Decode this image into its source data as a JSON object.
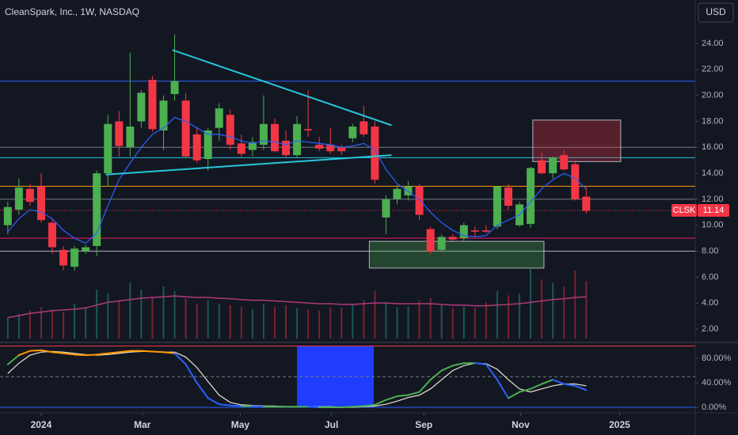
{
  "chart_data": {
    "type": "candlestick",
    "title": "CleanSpark, Inc., 1W, NASDAQ",
    "currency": "USD",
    "symbol": "CLSK",
    "last": 11.14,
    "last_color": "#f23645",
    "up_color": "#4caf50",
    "down_color": "#f23645",
    "x": [
      -3,
      -2,
      -1,
      0,
      1,
      2,
      3,
      4,
      5,
      6,
      7,
      8,
      9,
      10,
      11,
      12,
      13,
      14,
      15,
      16,
      17,
      18,
      19,
      20,
      21,
      22,
      23,
      24,
      25,
      26,
      27,
      28,
      29,
      30,
      31,
      32,
      33,
      34,
      35,
      36,
      37,
      38,
      39,
      40,
      41,
      42,
      43,
      44,
      45,
      46,
      47,
      48,
      49
    ],
    "open": [
      10,
      11.2,
      12.8,
      13,
      10.2,
      8.1,
      6.8,
      8,
      8.4,
      14,
      18,
      16,
      18,
      21.2,
      17.3,
      20.1,
      19.6,
      17,
      15.1,
      17.5,
      18.5,
      16.3,
      15.8,
      16.2,
      17.8,
      16.5,
      15.4,
      17.4,
      16.2,
      16.2,
      16,
      16.7,
      18,
      17.6,
      10.6,
      12,
      12.3,
      13,
      9.7,
      8.1,
      9.1,
      9,
      9.6,
      9.6,
      9.9,
      12.9,
      10,
      10.1,
      15,
      14,
      15.4,
      14.7,
      12.2
    ],
    "high": [
      11.8,
      13.6,
      13.2,
      14,
      10.5,
      8.4,
      8.4,
      8.5,
      14.2,
      18.5,
      18.8,
      23.3,
      20.4,
      21.5,
      20,
      24.7,
      20.2,
      17.5,
      17.5,
      19.4,
      18.9,
      17,
      16.8,
      20,
      18.2,
      17.3,
      18.4,
      20.4,
      16.8,
      17.5,
      16.2,
      17.8,
      19.2,
      18,
      12.3,
      13.1,
      13.4,
      13.2,
      9.9,
      9.3,
      9.3,
      10.2,
      9.9,
      10,
      13,
      13.2,
      11.8,
      14.5,
      15.6,
      15.3,
      15.8,
      15,
      12.9
    ],
    "low": [
      9.3,
      10.8,
      11.5,
      10.2,
      7.8,
      6.5,
      6.5,
      7.8,
      7.6,
      13,
      15.3,
      15.3,
      17.5,
      17.2,
      15.8,
      19.6,
      15.2,
      14.8,
      14.2,
      16.5,
      15.8,
      15.3,
      15.3,
      15.8,
      15.6,
      15.2,
      15.2,
      16.8,
      15.7,
      15.5,
      15.4,
      16.4,
      16.8,
      13.2,
      9.3,
      11.6,
      11.9,
      10.4,
      7.8,
      8,
      8.8,
      8.8,
      9.1,
      9.4,
      9.7,
      11.2,
      9.9,
      9.8,
      13.9,
      13.6,
      14.2,
      11.9,
      10.9
    ],
    "close": [
      11.4,
      12.9,
      11.8,
      10.4,
      8.3,
      6.9,
      8.2,
      8.3,
      14,
      17.8,
      16.1,
      17.6,
      20.2,
      17.4,
      19.6,
      21.1,
      15.3,
      15,
      17.3,
      19,
      16.2,
      15.5,
      16.4,
      17.8,
      15.7,
      15.4,
      17.8,
      17.3,
      15.9,
      15.7,
      15.7,
      17.6,
      17,
      13.5,
      12,
      12.8,
      13,
      10.8,
      8,
      9.1,
      8.9,
      10,
      9.5,
      9.5,
      13,
      11.5,
      11.6,
      14.4,
      14,
      15.2,
      14.3,
      12,
      11.1
    ],
    "xlim": [
      -3.7,
      58.8
    ],
    "xticks": [
      {
        "value": 0,
        "label": "2024"
      },
      {
        "value": 9.1,
        "label": "Mar"
      },
      {
        "value": 17.9,
        "label": "May"
      },
      {
        "value": 26.1,
        "label": "Jul"
      },
      {
        "value": 34.4,
        "label": "Sep"
      },
      {
        "value": 43.1,
        "label": "Nov"
      },
      {
        "value": 52,
        "label": "2025"
      }
    ],
    "ylim": [
      1.15,
      27.35
    ],
    "yticks": [
      {
        "value": 2,
        "label": "2.00"
      },
      {
        "value": 4,
        "label": "4.00"
      },
      {
        "value": 6,
        "label": "6.00"
      },
      {
        "value": 8,
        "label": "8.00"
      },
      {
        "value": 10,
        "label": "10.00"
      },
      {
        "value": 12,
        "label": "12.00"
      },
      {
        "value": 14,
        "label": "14.00"
      },
      {
        "value": 16,
        "label": "16.00"
      },
      {
        "value": 18,
        "label": "18.00"
      },
      {
        "value": 20,
        "label": "20.00"
      },
      {
        "value": 22,
        "label": "22.00"
      },
      {
        "value": 24,
        "label": "24.00"
      }
    ],
    "ma": {
      "color": "#2962ff",
      "values": [
        9.5,
        10.5,
        11.2,
        11,
        10.5,
        9.6,
        9,
        8.6,
        9.4,
        11.5,
        13.5,
        14.8,
        16,
        17,
        17.5,
        18.3,
        18,
        17.5,
        17,
        17,
        16.8,
        16.5,
        16.3,
        16.5,
        16.4,
        16.2,
        16.5,
        16.4,
        16.3,
        16.2,
        16,
        16.1,
        16.3,
        15.8,
        14.3,
        13.2,
        12.6,
        12,
        11,
        10.2,
        9.6,
        9.2,
        9.1,
        9.2,
        10,
        10.4,
        10.8,
        11.8,
        12.8,
        13.5,
        14,
        13.6,
        12.8
      ]
    },
    "volume": {
      "up_color": "rgba(38,166,154,0.45)",
      "down_color": "rgba(242,54,69,0.45)",
      "vlim": [
        0,
        100
      ],
      "ma_color": "#b03a78",
      "values": [
        30,
        35,
        40,
        45,
        40,
        38,
        50,
        45,
        70,
        65,
        55,
        80,
        70,
        60,
        75,
        68,
        58,
        50,
        55,
        50,
        48,
        45,
        42,
        50,
        45,
        48,
        44,
        42,
        40,
        45,
        44,
        50,
        55,
        68,
        52,
        45,
        46,
        55,
        58,
        48,
        44,
        46,
        44,
        52,
        68,
        62,
        64,
        100,
        85,
        80,
        75,
        98,
        82
      ],
      "ma_values": [
        30,
        33,
        36,
        38,
        40,
        41,
        42,
        44,
        48,
        52,
        54,
        56,
        58,
        59,
        60,
        61,
        60,
        59,
        59,
        58,
        57,
        56,
        55,
        55,
        54,
        53,
        52,
        51,
        50,
        50,
        49,
        49,
        50,
        51,
        51,
        50,
        50,
        50,
        50,
        49,
        48,
        48,
        47,
        47,
        48,
        49,
        50,
        52,
        54,
        56,
        57,
        59,
        60
      ]
    },
    "hlines": [
      {
        "value": 21.1,
        "color": "#2962ff"
      },
      {
        "value": 16,
        "color": "#787b86"
      },
      {
        "value": 15.2,
        "color": "#26c6da"
      },
      {
        "value": 13,
        "color": "#ff9800"
      },
      {
        "value": 12,
        "color": "#787b86"
      },
      {
        "value": 9,
        "color": "#e91e63"
      },
      {
        "value": 8,
        "color": "#b2b5be"
      }
    ],
    "trendlines": [
      {
        "x": [
          11.8,
          31.5
        ],
        "y": [
          23.5,
          17.7
        ],
        "color": "#26c6da"
      },
      {
        "x": [
          5.8,
          31.5
        ],
        "y": [
          13.9,
          15.4
        ],
        "color": "#26c6da"
      }
    ],
    "boxes": [
      {
        "x": [
          44.2,
          52.1
        ],
        "y": [
          18.1,
          14.9
        ],
        "color": "rgba(242,54,69,0.3)",
        "border": "#b2b5be"
      },
      {
        "x": [
          29.5,
          45.2
        ],
        "y": [
          8.76,
          6.7
        ],
        "color": "rgba(76,175,80,0.3)",
        "border": "#b2b5be"
      }
    ],
    "stoch": {
      "ylim": [
        -6.5,
        100.6
      ],
      "yticks": [
        {
          "value": 0,
          "label": "0.00%"
        },
        {
          "value": 40,
          "label": "40.00%"
        },
        {
          "value": 80,
          "label": "80.00%"
        }
      ],
      "levels": [
        {
          "value": 100,
          "color": "#f23645",
          "dash": false
        },
        {
          "value": 50,
          "color": "#787b86",
          "dash": true
        },
        {
          "value": 0,
          "color": "#2962ff",
          "dash": false
        }
      ],
      "highlight": {
        "x": [
          23,
          29.9
        ],
        "color": "#1f3cff"
      },
      "k": {
        "rise_color": "#4caf50",
        "fall_color": "#2962ff",
        "high_color": "#ff9800",
        "values": [
          70,
          85,
          92,
          93,
          90,
          88,
          86,
          85,
          86,
          88,
          90,
          92,
          92,
          91,
          90,
          88,
          70,
          40,
          15,
          5,
          3,
          2,
          2,
          1,
          1,
          1,
          1,
          1,
          0,
          0,
          0,
          1,
          2,
          4,
          12,
          18,
          20,
          25,
          45,
          60,
          68,
          72,
          72,
          70,
          45,
          15,
          25,
          30,
          38,
          45,
          38,
          35,
          28
        ]
      },
      "d": {
        "color": "#e8e4d0",
        "values": [
          55,
          72,
          85,
          90,
          91,
          90,
          88,
          86,
          85,
          86,
          88,
          90,
          91,
          91,
          90,
          90,
          82,
          65,
          42,
          20,
          8,
          4,
          3,
          2,
          2,
          1,
          1,
          1,
          1,
          1,
          0,
          0,
          1,
          2,
          5,
          10,
          16,
          20,
          30,
          45,
          60,
          68,
          72,
          71,
          62,
          45,
          30,
          25,
          30,
          35,
          38,
          38,
          35
        ]
      }
    }
  }
}
